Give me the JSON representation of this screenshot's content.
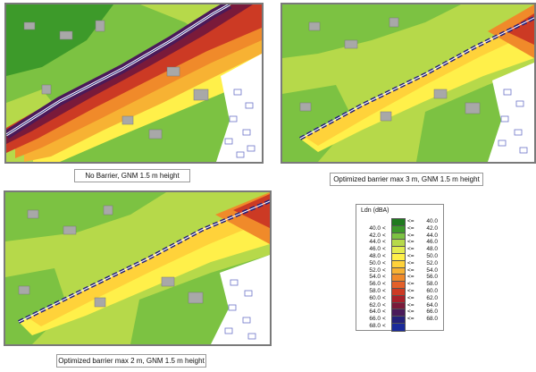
{
  "captions": {
    "panel1": "No Barrier, GNM 1.5 m height",
    "panel2": "Optimized barrier max 3 m, GNM 1.5 m height",
    "panel3": "Optimized barrier max 2 m, GNM 1.5 m height"
  },
  "legend": {
    "title": "Ldn (dBA)",
    "rows": [
      {
        "from": "",
        "op1": "",
        "op2": "<=",
        "to": "40.0",
        "color": "#1f7a1f"
      },
      {
        "from": "40.0",
        "op1": "<",
        "op2": "<=",
        "to": "42.0",
        "color": "#3d9a2a"
      },
      {
        "from": "42.0",
        "op1": "<",
        "op2": "<=",
        "to": "44.0",
        "color": "#7cc242"
      },
      {
        "from": "44.0",
        "op1": "<",
        "op2": "<=",
        "to": "46.0",
        "color": "#b6d94a"
      },
      {
        "from": "46.0",
        "op1": "<",
        "op2": "<=",
        "to": "48.0",
        "color": "#e3ec4f"
      },
      {
        "from": "48.0",
        "op1": "<",
        "op2": "<=",
        "to": "50.0",
        "color": "#fff04a"
      },
      {
        "from": "50.0",
        "op1": "<",
        "op2": "<=",
        "to": "52.0",
        "color": "#ffd23a"
      },
      {
        "from": "52.0",
        "op1": "<",
        "op2": "<=",
        "to": "54.0",
        "color": "#f7b233"
      },
      {
        "from": "54.0",
        "op1": "<",
        "op2": "<=",
        "to": "56.0",
        "color": "#f08a2a"
      },
      {
        "from": "56.0",
        "op1": "<",
        "op2": "<=",
        "to": "58.0",
        "color": "#e3602a"
      },
      {
        "from": "58.0",
        "op1": "<",
        "op2": "<=",
        "to": "60.0",
        "color": "#cc3a24"
      },
      {
        "from": "60.0",
        "op1": "<",
        "op2": "<=",
        "to": "62.0",
        "color": "#a8202a"
      },
      {
        "from": "62.0",
        "op1": "<",
        "op2": "<=",
        "to": "64.0",
        "color": "#7a1a3a"
      },
      {
        "from": "64.0",
        "op1": "<",
        "op2": "<=",
        "to": "66.0",
        "color": "#4a1a5a"
      },
      {
        "from": "66.0",
        "op1": "<",
        "op2": "<=",
        "to": "68.0",
        "color": "#24207a"
      },
      {
        "from": "68.0",
        "op1": "<",
        "op2": "",
        "to": "",
        "color": "#1a2a9a"
      }
    ]
  }
}
